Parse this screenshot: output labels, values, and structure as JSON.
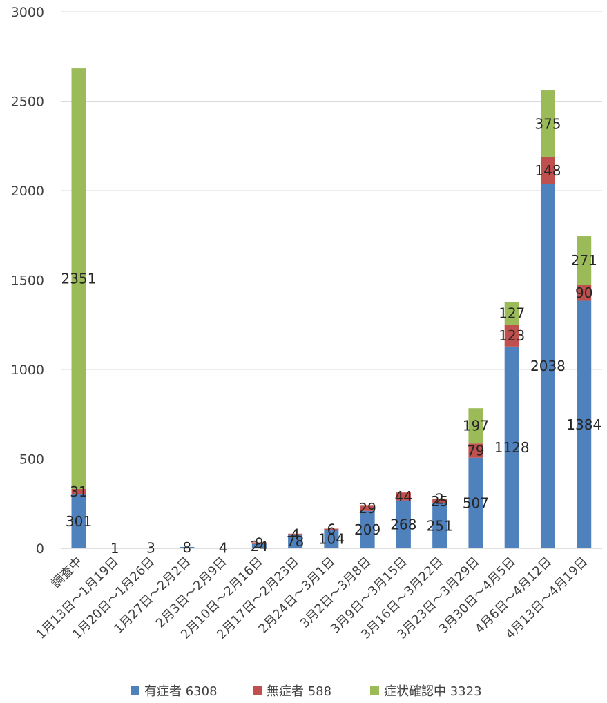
{
  "chart_data": {
    "type": "bar",
    "stacked": true,
    "categories": [
      "調査中",
      "1月13日～1月19日",
      "1月20日～1月26日",
      "1月27日～2月2日",
      "2月3日～2月9日",
      "2月10日～2月16日",
      "2月17日～2月23日",
      "2月24日～3月1日",
      "3月2日～3月8日",
      "3月9日～3月15日",
      "3月16日～3月22日",
      "3月23日～3月29日",
      "3月30日～4月5日",
      "4月6日～4月12日",
      "4月13日～4月19日"
    ],
    "series": [
      {
        "name": "有症者 6308",
        "color": "#4f81bd",
        "values": [
          301,
          1,
          3,
          8,
          4,
          24,
          78,
          104,
          209,
          268,
          251,
          507,
          1128,
          2038,
          1384
        ]
      },
      {
        "name": "無症者 588",
        "color": "#c0504d",
        "values": [
          31,
          null,
          null,
          null,
          null,
          9,
          4,
          6,
          29,
          44,
          25,
          79,
          123,
          148,
          90
        ]
      },
      {
        "name": "症状確認中 3323",
        "color": "#9bbb59",
        "values": [
          2351,
          null,
          null,
          null,
          null,
          null,
          null,
          null,
          null,
          null,
          2,
          197,
          127,
          375,
          271
        ]
      }
    ],
    "ylim": [
      0,
      3000
    ],
    "yticks": [
      0,
      500,
      1000,
      1500,
      2000,
      2500,
      3000
    ],
    "grid": true,
    "legend": "bottom"
  }
}
